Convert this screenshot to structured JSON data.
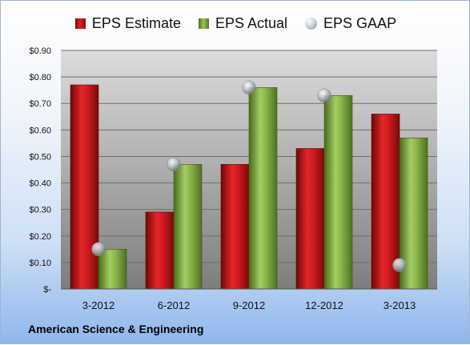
{
  "chart_data": {
    "type": "bar",
    "categories": [
      "3-2012",
      "6-2012",
      "9-2012",
      "12-2012",
      "3-2013"
    ],
    "series": [
      {
        "name": "EPS Estimate",
        "values": [
          0.77,
          0.29,
          0.47,
          0.53,
          0.66
        ],
        "color": "#c8161a"
      },
      {
        "name": "EPS Actual",
        "values": [
          0.15,
          0.47,
          0.76,
          0.73,
          0.57
        ],
        "color": "#7fa847"
      },
      {
        "name": "EPS GAAP",
        "values": [
          0.15,
          0.47,
          0.76,
          0.73,
          0.09
        ],
        "color": "#b9bec6",
        "marker": "circle"
      }
    ],
    "ylim": [
      0,
      0.9
    ],
    "ytick_labels": [
      "$-",
      "$0.10",
      "$0.20",
      "$0.30",
      "$0.40",
      "$0.50",
      "$0.60",
      "$0.70",
      "$0.80",
      "$0.90"
    ],
    "grid": true,
    "legend_position": "top",
    "footer": "American Science & Engineering"
  }
}
